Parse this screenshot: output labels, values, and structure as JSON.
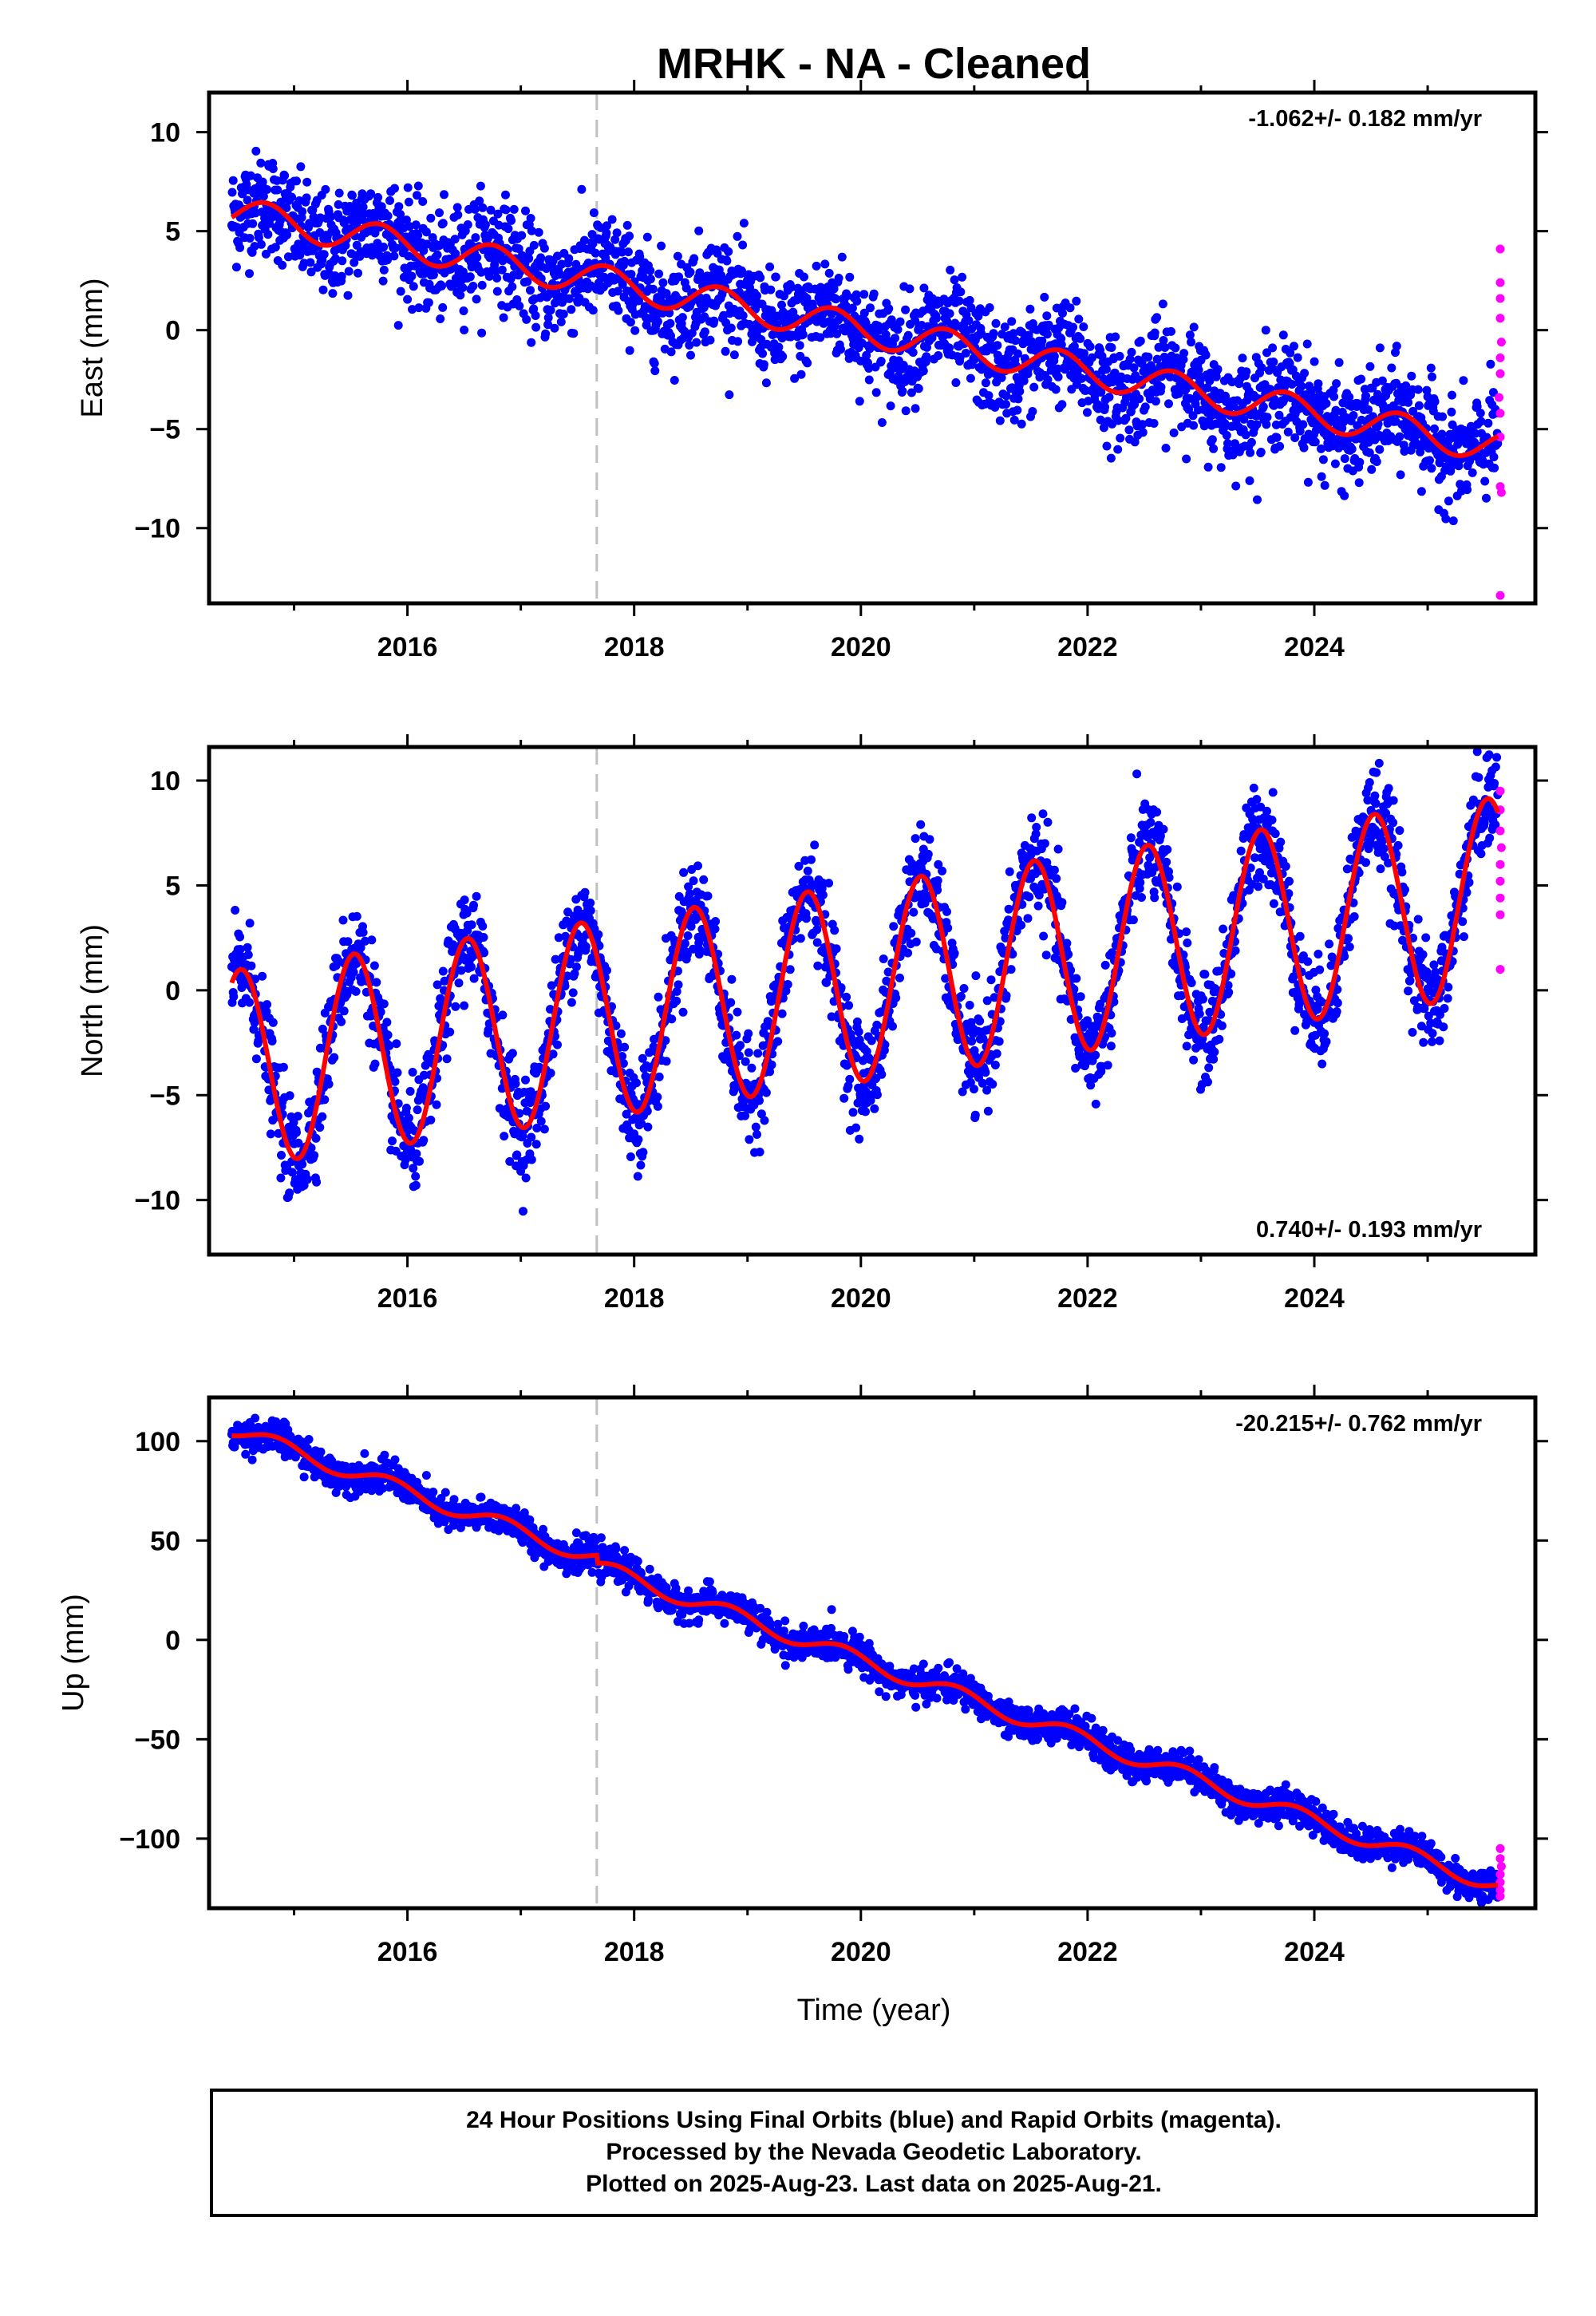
{
  "title": "MRHK  - NA - Cleaned",
  "footer": {
    "lines": [
      "24 Hour Positions Using Final Orbits (blue) and Rapid Orbits (magenta).",
      "Processed by the Nevada Geodetic Laboratory.",
      "Plotted on 2025-Aug-23. Last data on 2025-Aug-21."
    ]
  },
  "colors": {
    "final": "#0000ff",
    "rapid": "#ff00ff",
    "model": "#ff0000",
    "event_line": "#c0c0c0"
  },
  "chart_data": [
    {
      "type": "scatter",
      "component": "East",
      "ylabel": "East (mm)",
      "xlabel": "",
      "xlim": [
        2014.25,
        2025.95
      ],
      "ylim": [
        -13.8,
        12.0
      ],
      "xticks": [
        2016,
        2018,
        2020,
        2022,
        2024
      ],
      "yticks": [
        -10,
        -5,
        0,
        5,
        10
      ],
      "rate_label": "-1.062+/- 0.182 mm/yr",
      "rate_position": "top-right",
      "event_line_x": 2017.67,
      "model": {
        "t0": 2014.4,
        "offset": 6.0,
        "slope": -1.062,
        "annual_amp": 0.8,
        "annual_phase": 0.5,
        "scatter": 1.3
      },
      "rapid_points": [
        [
          2025.64,
          4.1
        ],
        [
          2025.64,
          2.4
        ],
        [
          2025.64,
          1.6
        ],
        [
          2025.64,
          0.6
        ],
        [
          2025.65,
          -0.6
        ],
        [
          2025.64,
          -1.4
        ],
        [
          2025.64,
          -2.2
        ],
        [
          2025.63,
          -3.4
        ],
        [
          2025.64,
          -4.2
        ],
        [
          2025.64,
          -5.4
        ],
        [
          2025.64,
          -7.9
        ],
        [
          2025.65,
          -8.2
        ],
        [
          2025.64,
          -13.4
        ]
      ],
      "series": [
        {
          "values_from": "model"
        },
        {
          "values_from": "rapid_points"
        }
      ]
    },
    {
      "type": "scatter",
      "component": "North",
      "ylabel": "North (mm)",
      "xlabel": "",
      "xlim": [
        2014.25,
        2025.95
      ],
      "ylim": [
        -12.6,
        11.6
      ],
      "xticks": [
        2016,
        2018,
        2020,
        2022,
        2024
      ],
      "yticks": [
        -10,
        -5,
        0,
        5,
        10
      ],
      "rate_label": "0.740+/- 0.193 mm/yr",
      "rate_position": "bottom-right",
      "event_line_x": 2017.67,
      "model": {
        "t0": 2014.4,
        "offset": -3.8,
        "slope": 0.74,
        "annual_amp": 4.7,
        "annual_phase": 0.28,
        "scatter": 1.2
      },
      "rapid_points": [
        [
          2025.64,
          9.5
        ],
        [
          2025.64,
          8.6
        ],
        [
          2025.64,
          7.6
        ],
        [
          2025.65,
          6.8
        ],
        [
          2025.64,
          6.0
        ],
        [
          2025.64,
          5.2
        ],
        [
          2025.64,
          4.4
        ],
        [
          2025.64,
          3.6
        ],
        [
          2025.64,
          1.0
        ]
      ],
      "series": [
        {
          "values_from": "model"
        },
        {
          "values_from": "rapid_points"
        }
      ]
    },
    {
      "type": "scatter",
      "component": "Up",
      "ylabel": "Up (mm)",
      "xlabel": "Time (year)",
      "xlim": [
        2014.25,
        2025.95
      ],
      "ylim": [
        -135,
        122
      ],
      "xticks": [
        2016,
        2018,
        2020,
        2022,
        2024
      ],
      "yticks": [
        -100,
        -50,
        0,
        50,
        100
      ],
      "rate_label": "-20.215+/- 0.762 mm/yr",
      "rate_position": "top-right",
      "event_line_x": 2017.67,
      "model": {
        "t0": 2014.4,
        "offset": 107.0,
        "slope": -20.215,
        "annual_amp": 4.0,
        "annual_phase": 0.6,
        "scatter": 4.0,
        "step_at": 2017.67,
        "step": -4.0
      },
      "rapid_points": [
        [
          2025.64,
          -105
        ],
        [
          2025.64,
          -110
        ],
        [
          2025.65,
          -114
        ],
        [
          2025.64,
          -118
        ],
        [
          2025.64,
          -122
        ],
        [
          2025.64,
          -126
        ],
        [
          2025.64,
          -129
        ]
      ],
      "series": [
        {
          "values_from": "model"
        },
        {
          "values_from": "rapid_points"
        }
      ]
    }
  ]
}
